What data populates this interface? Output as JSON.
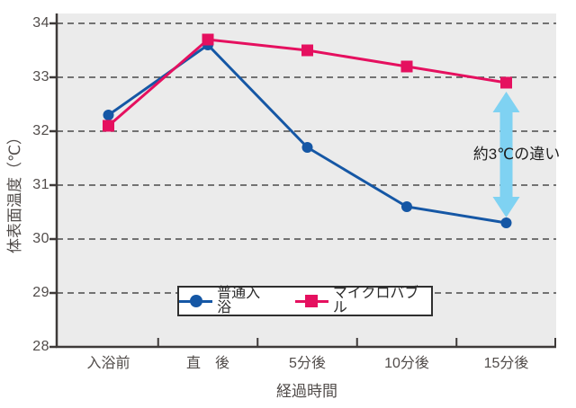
{
  "chart_data": {
    "type": "line",
    "title": "",
    "categories": [
      "入浴前",
      "直　後",
      "5分後",
      "10分後",
      "15分後"
    ],
    "series": [
      {
        "name": "普通入浴",
        "marker": "circle",
        "color": "#1557a5",
        "values": [
          32.3,
          33.6,
          31.7,
          30.6,
          30.3
        ]
      },
      {
        "name": "マイクロバブル",
        "marker": "square",
        "color": "#e5105f",
        "values": [
          32.1,
          33.7,
          33.5,
          33.2,
          32.9
        ]
      }
    ],
    "xlabel": "経過時間",
    "ylabel": "体表面温度（℃）",
    "ylim": [
      28,
      34
    ],
    "yticks": [
      34,
      33,
      32,
      31,
      30,
      29,
      28
    ],
    "grid": "horizontal-dashed",
    "legend_position": "bottom-center-inside",
    "annotation": {
      "text": "約3℃の違い",
      "arrow_color": "#7fd2f2",
      "at_category": "15分後",
      "from_value": 32.9,
      "to_value": 30.3
    }
  },
  "colors": {
    "plot_bg": "#ebebeb",
    "grid": "#4b4b4b",
    "axis": "#3e3a39",
    "tick_text": "#514c4a",
    "annotation_text": "#1f1f1f",
    "legend_border": "#2f2f2f"
  }
}
